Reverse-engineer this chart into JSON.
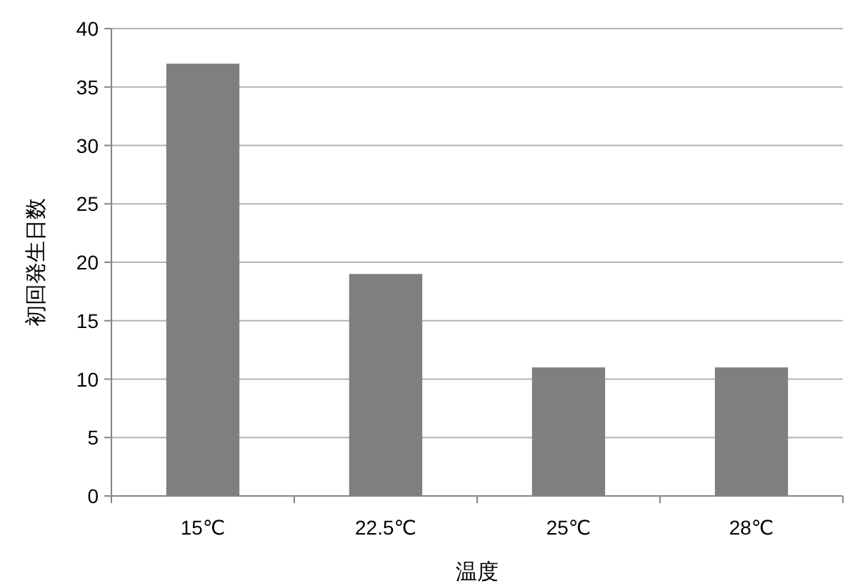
{
  "chart_data": {
    "type": "bar",
    "xlabel": "温度",
    "ylabel": "初回発生日数",
    "categories": [
      "15℃",
      "22.5℃",
      "25℃",
      "28℃"
    ],
    "values": [
      37,
      19,
      11,
      11
    ],
    "color": "#7f7f7f",
    "ylim": [
      0,
      40
    ],
    "yticks": [
      0,
      5,
      10,
      15,
      20,
      25,
      30,
      35,
      40
    ],
    "grid": "y"
  }
}
